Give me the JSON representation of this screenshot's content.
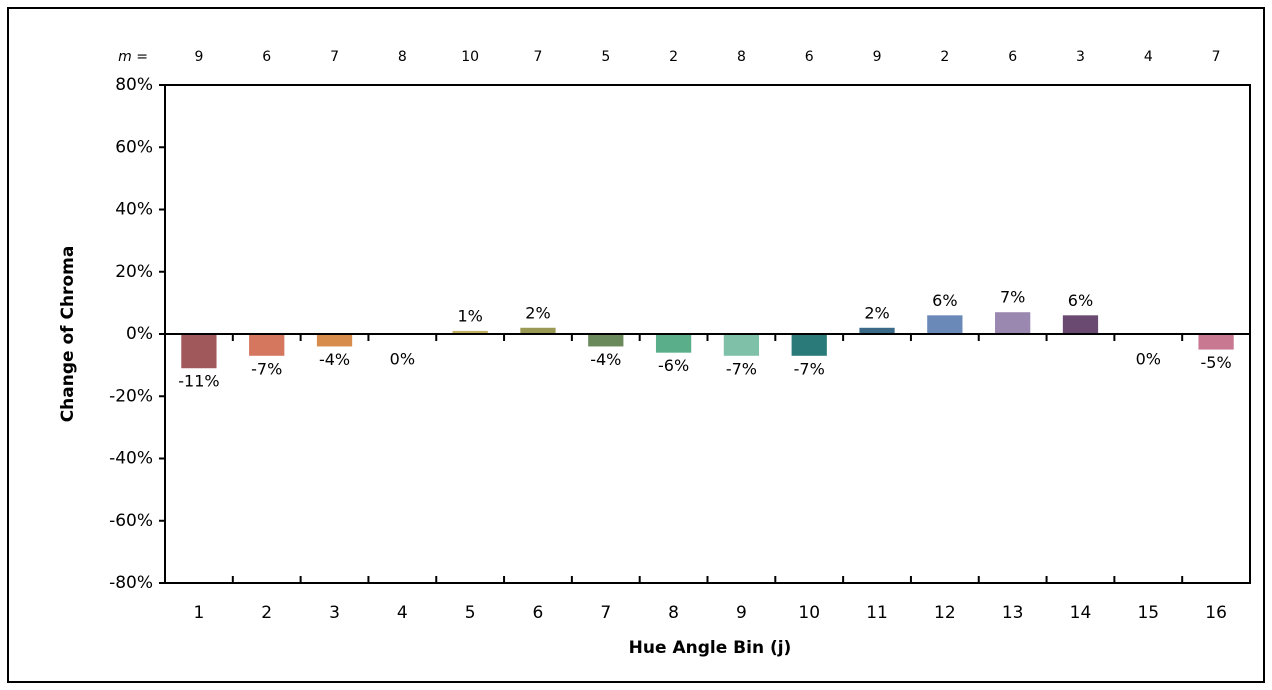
{
  "chart_data": {
    "type": "bar",
    "xlabel": "Hue Angle Bin (j)",
    "ylabel": "Change of Chroma",
    "categories": [
      "1",
      "2",
      "3",
      "4",
      "5",
      "6",
      "7",
      "8",
      "9",
      "10",
      "11",
      "12",
      "13",
      "14",
      "15",
      "16"
    ],
    "values": [
      -11,
      -7,
      -4,
      0,
      1,
      2,
      -4,
      -6,
      -7,
      -7,
      2,
      6,
      7,
      6,
      0,
      -5
    ],
    "value_labels": [
      "-11%",
      "-7%",
      "-4%",
      "0%",
      "1%",
      "2%",
      "-4%",
      "-6%",
      "-7%",
      "-7%",
      "2%",
      "6%",
      "7%",
      "6%",
      "0%",
      "-5%"
    ],
    "colors": [
      "#a0585a",
      "#d4775e",
      "#d88c4b",
      "#c8a050",
      "#c0b060",
      "#9a9a55",
      "#6a8a5c",
      "#5aae8a",
      "#7ec0a8",
      "#2a7a7a",
      "#3a6a88",
      "#6a88b8",
      "#9a88b0",
      "#6a4a70",
      "#b06080",
      "#c87890"
    ],
    "m_label": "m =",
    "m_values": [
      9,
      6,
      7,
      8,
      10,
      7,
      5,
      2,
      8,
      6,
      9,
      2,
      6,
      3,
      4,
      7
    ],
    "ylim": [
      -80,
      80
    ],
    "yticks": [
      {
        "value": -80,
        "label": "-80%"
      },
      {
        "value": -60,
        "label": "-60%"
      },
      {
        "value": -40,
        "label": "-40%"
      },
      {
        "value": -20,
        "label": "-20%"
      },
      {
        "value": 0,
        "label": "0%"
      },
      {
        "value": 20,
        "label": "20%"
      },
      {
        "value": 40,
        "label": "40%"
      },
      {
        "value": 60,
        "label": "60%"
      },
      {
        "value": 80,
        "label": "80%"
      }
    ],
    "grid": false
  }
}
